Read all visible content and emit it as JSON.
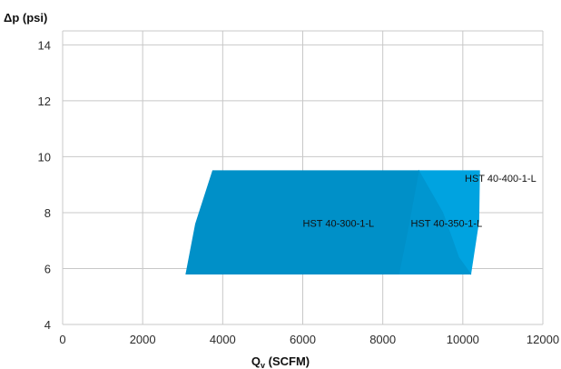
{
  "chart_data": {
    "type": "area",
    "title": "",
    "ylabel": "Δp (psi)",
    "xlabel_main": "Q",
    "xlabel_sub": "v",
    "xlabel_rest": " (SCFM)",
    "xlim": [
      0,
      12000
    ],
    "ylim": [
      4,
      14.5
    ],
    "xticks": [
      0,
      2000,
      4000,
      6000,
      8000,
      10000,
      12000
    ],
    "yticks": [
      4,
      6,
      8,
      10,
      12,
      14
    ],
    "grid": true,
    "colors": {
      "HST 40-300-1-L": "#0090c8",
      "HST 40-350-1-L": "#0096d0",
      "HST 40-400-1-L": "#00a3e0",
      "grid": "#c8c8c8"
    },
    "regions": [
      {
        "name": "HST 40-400-1-L",
        "label_at": [
          10050,
          9.1
        ],
        "polygon": [
          [
            8900,
            9.5
          ],
          [
            10420,
            9.5
          ],
          [
            10400,
            7.7
          ],
          [
            10200,
            5.8
          ],
          [
            10200,
            5.8
          ],
          [
            9900,
            6.4
          ],
          [
            9500,
            8.0
          ]
        ]
      },
      {
        "name": "HST 40-350-1-L",
        "label_at": [
          8700,
          7.5
        ],
        "polygon": [
          [
            8900,
            9.5
          ],
          [
            9500,
            8.0
          ],
          [
            9900,
            6.4
          ],
          [
            10200,
            5.8
          ],
          [
            8400,
            5.8
          ],
          [
            8600,
            7.2
          ]
        ]
      },
      {
        "name": "HST 40-300-1-L",
        "label_at": [
          6000,
          7.5
        ],
        "polygon": [
          [
            3750,
            9.5
          ],
          [
            8900,
            9.5
          ],
          [
            8600,
            7.2
          ],
          [
            8400,
            5.8
          ],
          [
            3080,
            5.8
          ],
          [
            3320,
            7.6
          ]
        ]
      }
    ]
  }
}
